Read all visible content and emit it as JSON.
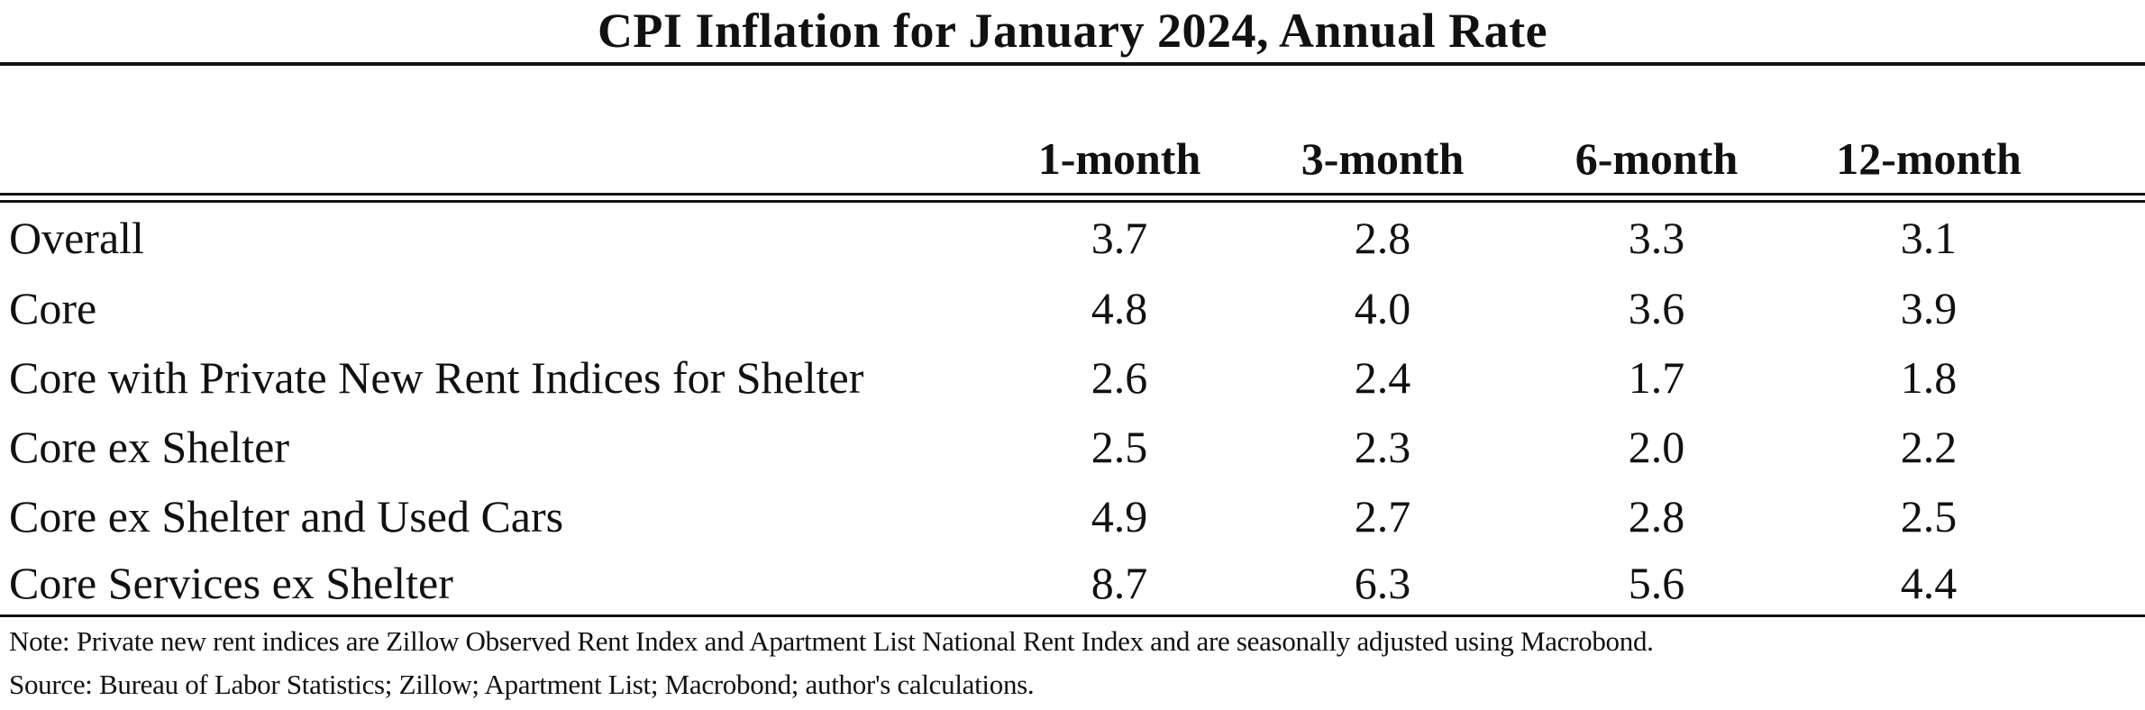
{
  "table": {
    "title": "CPI Inflation for January 2024, Annual Rate",
    "columns": [
      "1-month",
      "3-month",
      "6-month",
      "12-month"
    ],
    "rows": [
      {
        "label": "Overall",
        "values": [
          "3.7",
          "2.8",
          "3.3",
          "3.1"
        ]
      },
      {
        "label": "Core",
        "values": [
          "4.8",
          "4.0",
          "3.6",
          "3.9"
        ]
      },
      {
        "label": "Core with Private New Rent Indices for Shelter",
        "values": [
          "2.6",
          "2.4",
          "1.7",
          "1.8"
        ]
      },
      {
        "label": "Core ex Shelter",
        "values": [
          "2.5",
          "2.3",
          "2.0",
          "2.2"
        ]
      },
      {
        "label": "Core ex Shelter and Used Cars",
        "values": [
          "4.9",
          "2.7",
          "2.8",
          "2.5"
        ]
      },
      {
        "label": "Core Services ex Shelter",
        "values": [
          "8.7",
          "6.3",
          "5.6",
          "4.4"
        ]
      }
    ],
    "note": "Note: Private new rent indices are Zillow Observed Rent Index and Apartment List National Rent Index and are seasonally adjusted using Macrobond.",
    "source": "Source: Bureau of Labor Statistics; Zillow; Apartment List; Macrobond; author's calculations."
  }
}
